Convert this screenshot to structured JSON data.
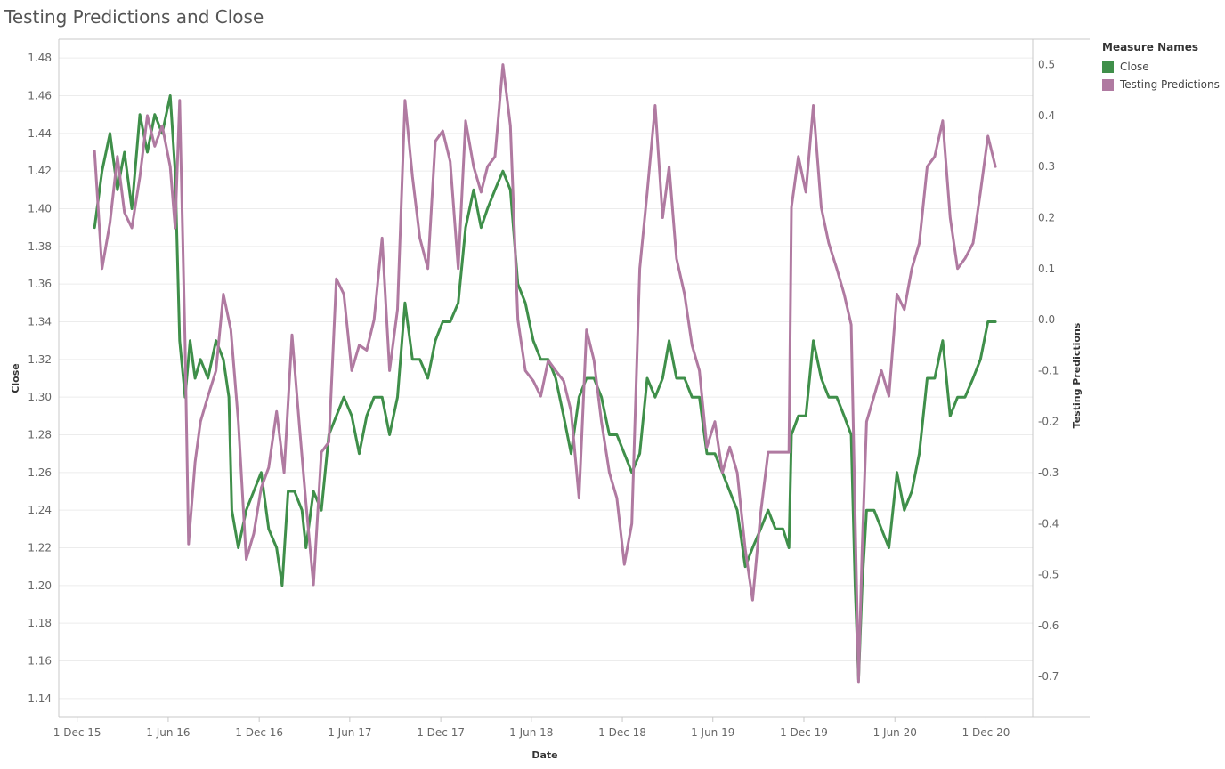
{
  "chart_data": {
    "type": "line",
    "title": "Testing Predictions and Close",
    "xlabel": "Date",
    "ylabel_left": "Close",
    "ylabel_right": "Testing Predictions",
    "x_ticks": [
      "1 Dec 15",
      "1 Jun 16",
      "1 Dec 16",
      "1 Jun 17",
      "1 Dec 17",
      "1 Jun 18",
      "1 Dec 18",
      "1 Jun 19",
      "1 Dec 19",
      "1 Jun 20",
      "1 Dec 20"
    ],
    "x_tick_dates": [
      "2015-12-01",
      "2016-06-01",
      "2016-12-01",
      "2017-06-01",
      "2017-12-01",
      "2018-06-01",
      "2018-12-01",
      "2019-06-01",
      "2019-12-01",
      "2020-06-01",
      "2020-12-01"
    ],
    "xlim": [
      "2015-10-25",
      "2021-03-05"
    ],
    "ylim_left": [
      1.13,
      1.49
    ],
    "left_ticks": [
      "1.14",
      "1.16",
      "1.18",
      "1.20",
      "1.22",
      "1.24",
      "1.26",
      "1.28",
      "1.30",
      "1.32",
      "1.34",
      "1.36",
      "1.38",
      "1.40",
      "1.42",
      "1.44",
      "1.46",
      "1.48"
    ],
    "ylim_right": [
      -0.78,
      0.55
    ],
    "right_ticks": [
      "-0.7",
      "-0.6",
      "-0.5",
      "-0.4",
      "-0.3",
      "-0.2",
      "-0.1",
      "0.0",
      "0.1",
      "0.2",
      "0.3",
      "0.4",
      "0.5"
    ],
    "grid": true,
    "legend": {
      "title": "Measure Names",
      "position": "top-right",
      "items": [
        {
          "label": "Close",
          "color": "#3f8f4a"
        },
        {
          "label": "Testing Predictions",
          "color": "#b07aa1"
        }
      ]
    },
    "series": [
      {
        "name": "Close",
        "axis": "left",
        "color": "#3f8f4a",
        "points": [
          [
            "2016-01-05",
            1.39
          ],
          [
            "2016-01-20",
            1.42
          ],
          [
            "2016-02-05",
            1.44
          ],
          [
            "2016-02-20",
            1.41
          ],
          [
            "2016-03-05",
            1.43
          ],
          [
            "2016-03-20",
            1.4
          ],
          [
            "2016-04-05",
            1.45
          ],
          [
            "2016-04-20",
            1.43
          ],
          [
            "2016-05-05",
            1.45
          ],
          [
            "2016-05-20",
            1.44
          ],
          [
            "2016-06-05",
            1.46
          ],
          [
            "2016-06-15",
            1.42
          ],
          [
            "2016-06-24",
            1.33
          ],
          [
            "2016-07-05",
            1.3
          ],
          [
            "2016-07-15",
            1.33
          ],
          [
            "2016-07-25",
            1.31
          ],
          [
            "2016-08-05",
            1.32
          ],
          [
            "2016-08-20",
            1.31
          ],
          [
            "2016-09-05",
            1.33
          ],
          [
            "2016-09-20",
            1.32
          ],
          [
            "2016-10-01",
            1.3
          ],
          [
            "2016-10-07",
            1.24
          ],
          [
            "2016-10-20",
            1.22
          ],
          [
            "2016-11-05",
            1.24
          ],
          [
            "2016-11-20",
            1.25
          ],
          [
            "2016-12-05",
            1.26
          ],
          [
            "2016-12-20",
            1.23
          ],
          [
            "2017-01-05",
            1.22
          ],
          [
            "2017-01-16",
            1.2
          ],
          [
            "2017-01-28",
            1.25
          ],
          [
            "2017-02-10",
            1.25
          ],
          [
            "2017-02-25",
            1.24
          ],
          [
            "2017-03-05",
            1.22
          ],
          [
            "2017-03-20",
            1.25
          ],
          [
            "2017-04-05",
            1.24
          ],
          [
            "2017-04-20",
            1.28
          ],
          [
            "2017-05-05",
            1.29
          ],
          [
            "2017-05-20",
            1.3
          ],
          [
            "2017-06-05",
            1.29
          ],
          [
            "2017-06-20",
            1.27
          ],
          [
            "2017-07-05",
            1.29
          ],
          [
            "2017-07-20",
            1.3
          ],
          [
            "2017-08-05",
            1.3
          ],
          [
            "2017-08-20",
            1.28
          ],
          [
            "2017-09-05",
            1.3
          ],
          [
            "2017-09-20",
            1.35
          ],
          [
            "2017-10-05",
            1.32
          ],
          [
            "2017-10-20",
            1.32
          ],
          [
            "2017-11-05",
            1.31
          ],
          [
            "2017-11-20",
            1.33
          ],
          [
            "2017-12-05",
            1.34
          ],
          [
            "2017-12-20",
            1.34
          ],
          [
            "2018-01-05",
            1.35
          ],
          [
            "2018-01-20",
            1.39
          ],
          [
            "2018-02-05",
            1.41
          ],
          [
            "2018-02-20",
            1.39
          ],
          [
            "2018-03-05",
            1.4
          ],
          [
            "2018-03-20",
            1.41
          ],
          [
            "2018-04-05",
            1.42
          ],
          [
            "2018-04-20",
            1.41
          ],
          [
            "2018-05-05",
            1.36
          ],
          [
            "2018-05-20",
            1.35
          ],
          [
            "2018-06-05",
            1.33
          ],
          [
            "2018-06-20",
            1.32
          ],
          [
            "2018-07-05",
            1.32
          ],
          [
            "2018-07-20",
            1.31
          ],
          [
            "2018-08-05",
            1.29
          ],
          [
            "2018-08-20",
            1.27
          ],
          [
            "2018-09-05",
            1.3
          ],
          [
            "2018-09-20",
            1.31
          ],
          [
            "2018-10-05",
            1.31
          ],
          [
            "2018-10-20",
            1.3
          ],
          [
            "2018-11-05",
            1.28
          ],
          [
            "2018-11-20",
            1.28
          ],
          [
            "2018-12-05",
            1.27
          ],
          [
            "2018-12-20",
            1.26
          ],
          [
            "2019-01-05",
            1.27
          ],
          [
            "2019-01-20",
            1.31
          ],
          [
            "2019-02-05",
            1.3
          ],
          [
            "2019-02-20",
            1.31
          ],
          [
            "2019-03-05",
            1.33
          ],
          [
            "2019-03-20",
            1.31
          ],
          [
            "2019-04-05",
            1.31
          ],
          [
            "2019-04-20",
            1.3
          ],
          [
            "2019-05-05",
            1.3
          ],
          [
            "2019-05-20",
            1.27
          ],
          [
            "2019-06-05",
            1.27
          ],
          [
            "2019-06-20",
            1.26
          ],
          [
            "2019-07-05",
            1.25
          ],
          [
            "2019-07-20",
            1.24
          ],
          [
            "2019-08-05",
            1.21
          ],
          [
            "2019-08-20",
            1.22
          ],
          [
            "2019-09-05",
            1.23
          ],
          [
            "2019-09-20",
            1.24
          ],
          [
            "2019-10-05",
            1.23
          ],
          [
            "2019-10-20",
            1.23
          ],
          [
            "2019-11-01",
            1.22
          ],
          [
            "2019-11-06",
            1.28
          ],
          [
            "2019-11-20",
            1.29
          ],
          [
            "2019-12-05",
            1.29
          ],
          [
            "2019-12-20",
            1.33
          ],
          [
            "2020-01-05",
            1.31
          ],
          [
            "2020-01-20",
            1.3
          ],
          [
            "2020-02-05",
            1.3
          ],
          [
            "2020-02-20",
            1.29
          ],
          [
            "2020-03-05",
            1.28
          ],
          [
            "2020-03-13",
            1.2
          ],
          [
            "2020-03-20",
            1.15
          ],
          [
            "2020-03-27",
            1.2
          ],
          [
            "2020-04-05",
            1.24
          ],
          [
            "2020-04-20",
            1.24
          ],
          [
            "2020-05-05",
            1.23
          ],
          [
            "2020-05-20",
            1.22
          ],
          [
            "2020-06-05",
            1.26
          ],
          [
            "2020-06-20",
            1.24
          ],
          [
            "2020-07-05",
            1.25
          ],
          [
            "2020-07-20",
            1.27
          ],
          [
            "2020-08-05",
            1.31
          ],
          [
            "2020-08-20",
            1.31
          ],
          [
            "2020-09-05",
            1.33
          ],
          [
            "2020-09-20",
            1.29
          ],
          [
            "2020-10-05",
            1.3
          ],
          [
            "2020-10-20",
            1.3
          ],
          [
            "2020-11-05",
            1.31
          ],
          [
            "2020-11-20",
            1.32
          ],
          [
            "2020-12-05",
            1.34
          ],
          [
            "2020-12-20",
            1.34
          ]
        ]
      },
      {
        "name": "Testing Predictions",
        "axis": "right",
        "color": "#b07aa1",
        "points": [
          [
            "2016-01-05",
            0.33
          ],
          [
            "2016-01-20",
            0.1
          ],
          [
            "2016-02-05",
            0.19
          ],
          [
            "2016-02-20",
            0.32
          ],
          [
            "2016-03-05",
            0.21
          ],
          [
            "2016-03-20",
            0.18
          ],
          [
            "2016-04-05",
            0.28
          ],
          [
            "2016-04-20",
            0.4
          ],
          [
            "2016-05-05",
            0.34
          ],
          [
            "2016-05-20",
            0.38
          ],
          [
            "2016-06-05",
            0.3
          ],
          [
            "2016-06-15",
            0.18
          ],
          [
            "2016-06-24",
            0.43
          ],
          [
            "2016-07-05",
            -0.05
          ],
          [
            "2016-07-12",
            -0.44
          ],
          [
            "2016-07-25",
            -0.28
          ],
          [
            "2016-08-05",
            -0.2
          ],
          [
            "2016-08-20",
            -0.15
          ],
          [
            "2016-09-05",
            -0.1
          ],
          [
            "2016-09-20",
            0.05
          ],
          [
            "2016-10-05",
            -0.02
          ],
          [
            "2016-10-20",
            -0.2
          ],
          [
            "2016-11-05",
            -0.47
          ],
          [
            "2016-11-20",
            -0.42
          ],
          [
            "2016-12-05",
            -0.33
          ],
          [
            "2016-12-20",
            -0.29
          ],
          [
            "2017-01-05",
            -0.18
          ],
          [
            "2017-01-20",
            -0.3
          ],
          [
            "2017-02-05",
            -0.03
          ],
          [
            "2017-02-20",
            -0.21
          ],
          [
            "2017-03-05",
            -0.36
          ],
          [
            "2017-03-20",
            -0.52
          ],
          [
            "2017-04-05",
            -0.26
          ],
          [
            "2017-04-20",
            -0.24
          ],
          [
            "2017-05-05",
            0.08
          ],
          [
            "2017-05-20",
            0.05
          ],
          [
            "2017-06-05",
            -0.1
          ],
          [
            "2017-06-20",
            -0.05
          ],
          [
            "2017-07-05",
            -0.06
          ],
          [
            "2017-07-20",
            0.0
          ],
          [
            "2017-08-05",
            0.16
          ],
          [
            "2017-08-20",
            -0.1
          ],
          [
            "2017-09-05",
            0.02
          ],
          [
            "2017-09-20",
            0.43
          ],
          [
            "2017-10-05",
            0.28
          ],
          [
            "2017-10-20",
            0.16
          ],
          [
            "2017-11-05",
            0.1
          ],
          [
            "2017-11-20",
            0.35
          ],
          [
            "2017-12-05",
            0.37
          ],
          [
            "2017-12-20",
            0.31
          ],
          [
            "2018-01-05",
            0.1
          ],
          [
            "2018-01-20",
            0.39
          ],
          [
            "2018-02-05",
            0.3
          ],
          [
            "2018-02-20",
            0.25
          ],
          [
            "2018-03-05",
            0.3
          ],
          [
            "2018-03-20",
            0.32
          ],
          [
            "2018-04-05",
            0.5
          ],
          [
            "2018-04-20",
            0.38
          ],
          [
            "2018-05-05",
            0.0
          ],
          [
            "2018-05-20",
            -0.1
          ],
          [
            "2018-06-05",
            -0.12
          ],
          [
            "2018-06-20",
            -0.15
          ],
          [
            "2018-07-05",
            -0.08
          ],
          [
            "2018-07-20",
            -0.1
          ],
          [
            "2018-08-05",
            -0.12
          ],
          [
            "2018-08-20",
            -0.18
          ],
          [
            "2018-09-05",
            -0.35
          ],
          [
            "2018-09-20",
            -0.02
          ],
          [
            "2018-10-05",
            -0.08
          ],
          [
            "2018-10-20",
            -0.2
          ],
          [
            "2018-11-05",
            -0.3
          ],
          [
            "2018-11-20",
            -0.35
          ],
          [
            "2018-12-05",
            -0.48
          ],
          [
            "2018-12-20",
            -0.4
          ],
          [
            "2019-01-05",
            0.1
          ],
          [
            "2019-01-20",
            0.25
          ],
          [
            "2019-02-05",
            0.42
          ],
          [
            "2019-02-20",
            0.2
          ],
          [
            "2019-03-05",
            0.3
          ],
          [
            "2019-03-20",
            0.12
          ],
          [
            "2019-04-05",
            0.05
          ],
          [
            "2019-04-20",
            -0.05
          ],
          [
            "2019-05-05",
            -0.1
          ],
          [
            "2019-05-20",
            -0.25
          ],
          [
            "2019-06-05",
            -0.2
          ],
          [
            "2019-06-20",
            -0.3
          ],
          [
            "2019-07-05",
            -0.25
          ],
          [
            "2019-07-20",
            -0.3
          ],
          [
            "2019-08-05",
            -0.45
          ],
          [
            "2019-08-20",
            -0.55
          ],
          [
            "2019-09-05",
            -0.38
          ],
          [
            "2019-09-20",
            -0.26
          ],
          [
            "2019-10-20",
            -0.26
          ],
          [
            "2019-11-01",
            -0.26
          ],
          [
            "2019-11-06",
            0.22
          ],
          [
            "2019-11-20",
            0.32
          ],
          [
            "2019-12-05",
            0.25
          ],
          [
            "2019-12-20",
            0.42
          ],
          [
            "2020-01-05",
            0.22
          ],
          [
            "2020-01-20",
            0.15
          ],
          [
            "2020-02-05",
            0.1
          ],
          [
            "2020-02-20",
            0.05
          ],
          [
            "2020-03-05",
            -0.01
          ],
          [
            "2020-03-13",
            -0.38
          ],
          [
            "2020-03-20",
            -0.71
          ],
          [
            "2020-03-27",
            -0.45
          ],
          [
            "2020-04-05",
            -0.2
          ],
          [
            "2020-04-20",
            -0.15
          ],
          [
            "2020-05-05",
            -0.1
          ],
          [
            "2020-05-20",
            -0.15
          ],
          [
            "2020-06-05",
            0.05
          ],
          [
            "2020-06-20",
            0.02
          ],
          [
            "2020-07-05",
            0.1
          ],
          [
            "2020-07-20",
            0.15
          ],
          [
            "2020-08-05",
            0.3
          ],
          [
            "2020-08-20",
            0.32
          ],
          [
            "2020-09-05",
            0.39
          ],
          [
            "2020-09-20",
            0.2
          ],
          [
            "2020-10-05",
            0.1
          ],
          [
            "2020-10-20",
            0.12
          ],
          [
            "2020-11-05",
            0.15
          ],
          [
            "2020-11-20",
            0.25
          ],
          [
            "2020-12-05",
            0.36
          ],
          [
            "2020-12-20",
            0.3
          ]
        ]
      }
    ]
  }
}
